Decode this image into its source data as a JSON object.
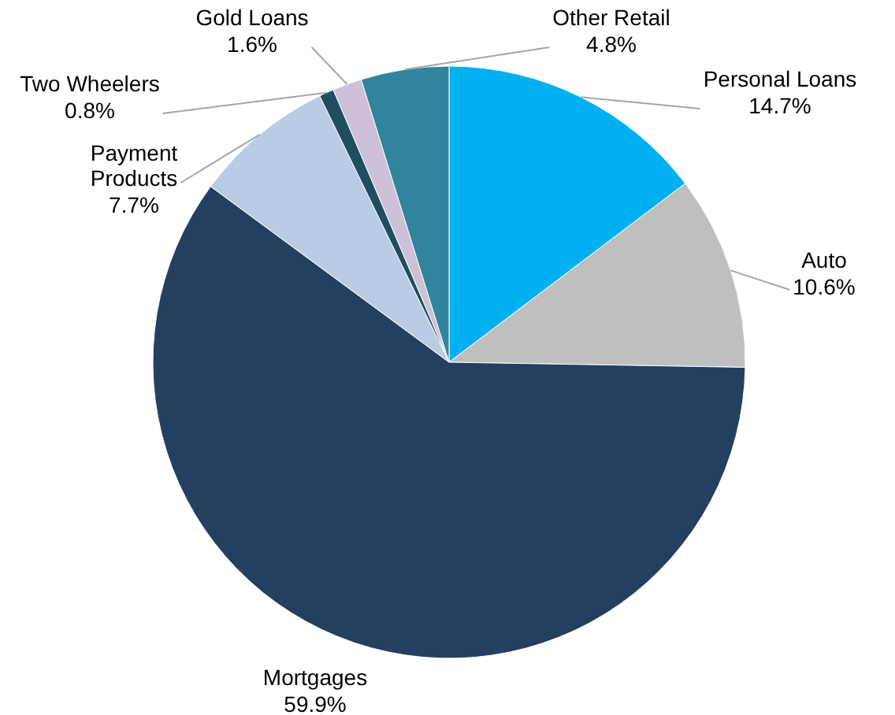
{
  "chart_data": {
    "type": "pie",
    "categories": [
      "Personal Loans",
      "Auto",
      "Mortgages",
      "Payment Products",
      "Two Wheelers",
      "Gold Loans",
      "Other Retail"
    ],
    "values": [
      14.7,
      10.6,
      59.9,
      7.7,
      0.8,
      1.6,
      4.8
    ],
    "colors": [
      "#00b0f0",
      "#bfbfbf",
      "#243f60",
      "#b8cce4",
      "#1f4e5f",
      "#ccc0da",
      "#31849b"
    ],
    "value_labels": [
      "14.7%",
      "10.6%",
      "59.9%",
      "7.7%",
      "0.8%",
      "1.6%",
      "4.8%"
    ]
  }
}
